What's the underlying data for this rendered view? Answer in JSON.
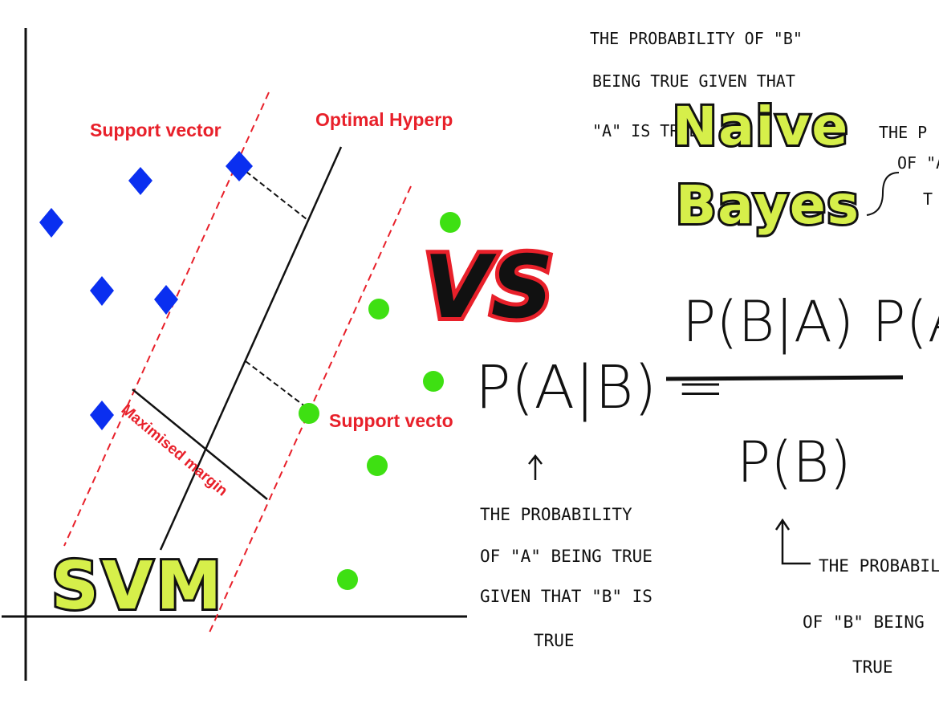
{
  "svm": {
    "title": "SVM",
    "label_support_vector_top": "Support vector",
    "label_hyperplane": "Optimal Hyperp",
    "label_support_vector_bottom": "Support vecto",
    "label_margin": "Maximised margin",
    "colors": {
      "class_a": "#0a2ff0",
      "class_b": "#3ee012",
      "margin_lines": "#e8202a"
    }
  },
  "vs_label": "VS",
  "naive_bayes": {
    "title_line1": "Naive",
    "title_line2": "Bayes",
    "note_top": [
      "THE PROBABILITY OF \"B\"",
      "BEING TRUE GIVEN THAT",
      "\"A\" IS TRUE"
    ],
    "note_right_fragment": [
      "THE P",
      "OF \"A",
      "T"
    ],
    "formula": {
      "lhs": "P(A|B) =",
      "numerator": "P(B|A)  P(A)",
      "denominator": "P(B)"
    },
    "note_bottom_left": [
      "THE PROBABILITY",
      "OF \"A\" BEING TRUE",
      "GIVEN THAT \"B\" IS",
      "TRUE"
    ],
    "note_bottom_right": [
      "THE PROBABIL",
      "OF \"B\" BEING",
      "TRUE"
    ]
  }
}
